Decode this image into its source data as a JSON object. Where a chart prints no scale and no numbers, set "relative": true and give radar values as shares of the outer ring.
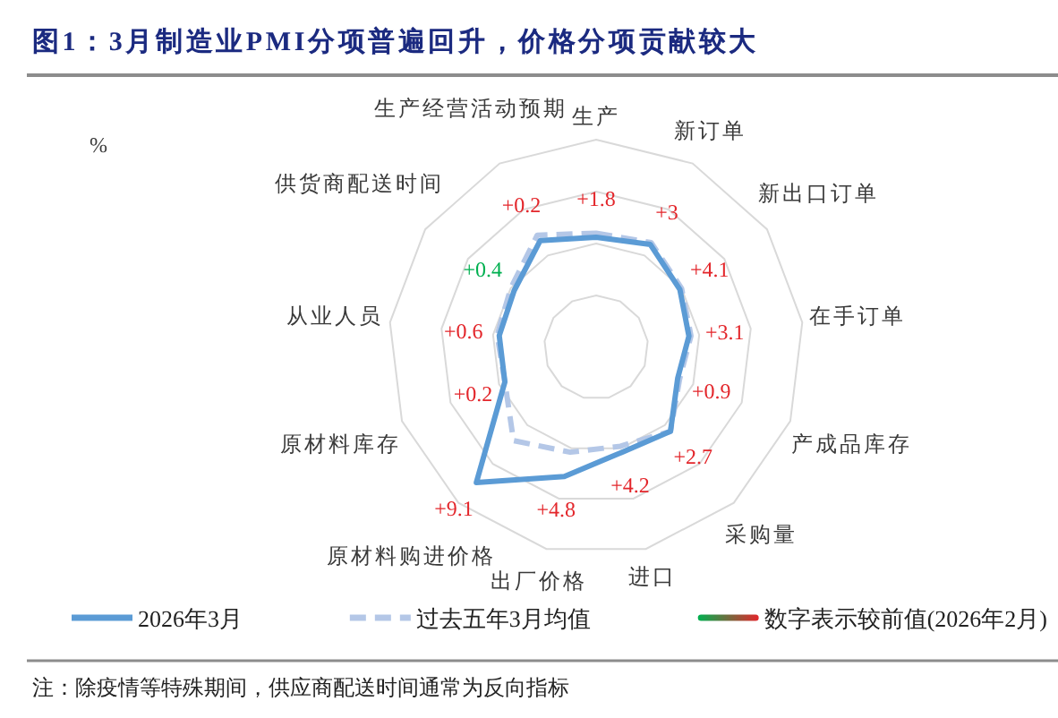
{
  "chart_data": {
    "type": "radar",
    "title": "图1：3月制造业PMI分项普遍回升，价格分项贡献较大",
    "ylabel": "%",
    "categories": [
      "生产",
      "新订单",
      "新出口订单",
      "在手订单",
      "产成品库存",
      "采购量",
      "进口",
      "出厂价格",
      "原材料购进价格",
      "原材料库存",
      "从业人员",
      "供货商配送时间",
      "生产经营活动预期"
    ],
    "relative": true,
    "grid": true,
    "legend": "bottom",
    "series": [
      {
        "name": "2026年3月",
        "color": "#5b9bd5",
        "line_style": "solid",
        "values": [
          0.53,
          0.56,
          0.49,
          0.45,
          0.42,
          0.54,
          0.52,
          0.64,
          0.87,
          0.47,
          0.47,
          0.48,
          0.58
        ]
      },
      {
        "name": "过去五年3月均值",
        "color": "#b4c7e7",
        "line_style": "dashed",
        "values": [
          0.55,
          0.57,
          0.5,
          0.46,
          0.43,
          0.54,
          0.49,
          0.52,
          0.6,
          0.47,
          0.48,
          0.5,
          0.61
        ]
      },
      {
        "name": "数字表示较前值(2026年2月)",
        "type": "other",
        "values": [
          null,
          null,
          null,
          null,
          null,
          null,
          null,
          null,
          null,
          null,
          null,
          null,
          null
        ],
        "colors": [
          "#e3262b",
          "#e3262b",
          "#e3262b",
          "#e3262b",
          "#e3262b",
          "#e3262b",
          "#e3262b",
          "#e3262b",
          "#e3262b",
          "#e3262b",
          "#e3262b",
          "#00b050",
          "#e3262b"
        ]
      }
    ],
    "annotations": [
      "注：除疫情等特殊期间，供应商配送时间通常为反向指标",
      {
        "text": "+1.8",
        "x": "生产"
      },
      {
        "text": "+3",
        "x": "新订单"
      },
      {
        "text": "+4.1",
        "x": "新出口订单"
      },
      {
        "text": "+3.1",
        "x": "在手订单"
      },
      {
        "text": "+0.9",
        "x": "产成品库存"
      },
      {
        "text": "+2.7",
        "x": "采购量"
      },
      {
        "text": "+4.2",
        "x": "进口"
      },
      {
        "text": "+4.8",
        "x": "出厂价格"
      },
      {
        "text": "+9.1",
        "x": "原材料购进价格"
      },
      {
        "text": "+0.2",
        "x": "原材料库存"
      },
      {
        "text": "+0.6",
        "x": "从业人员"
      },
      {
        "text": "+0.4",
        "x": "供货商配送时间"
      },
      {
        "text": "+0.2",
        "x": "生产经营活动预期"
      }
    ]
  }
}
